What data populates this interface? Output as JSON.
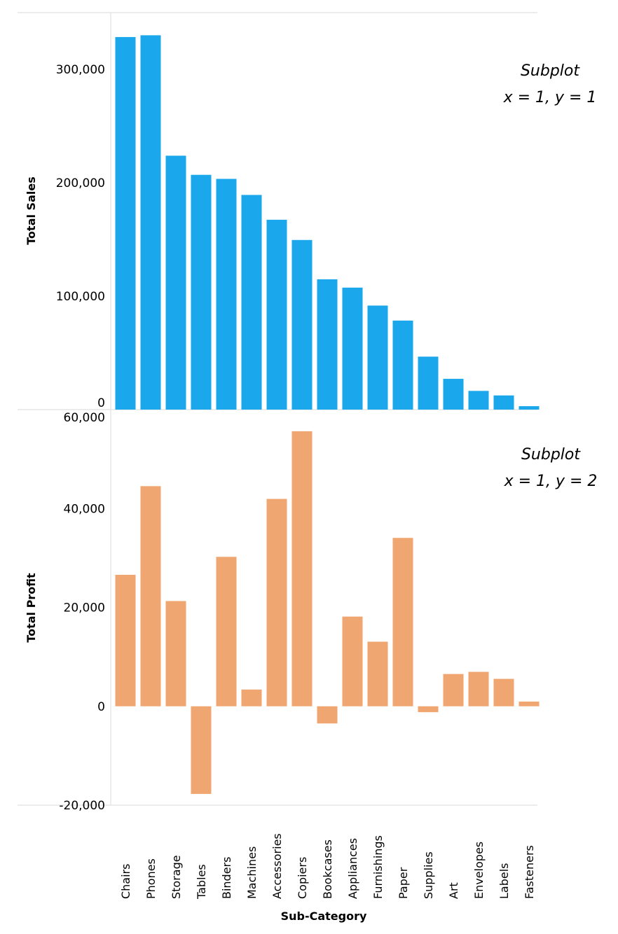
{
  "chart_data": [
    {
      "type": "bar",
      "subplot": "top",
      "categories": [
        "Chairs",
        "Phones",
        "Storage",
        "Tables",
        "Binders",
        "Machines",
        "Accessories",
        "Copiers",
        "Bookcases",
        "Appliances",
        "Furnishings",
        "Paper",
        "Supplies",
        "Art",
        "Envelopes",
        "Labels",
        "Fasteners"
      ],
      "values": [
        328449,
        330007,
        223844,
        206966,
        203413,
        189239,
        167380,
        149528,
        114880,
        107532,
        91705,
        78479,
        46674,
        27119,
        16476,
        12486,
        3024
      ],
      "ylabel": "Total Sales",
      "ylim": [
        0,
        350000
      ],
      "yticks": [
        0,
        100000,
        200000,
        300000
      ],
      "ytick_labels": [
        "0",
        "100,000",
        "200,000",
        "300,000"
      ],
      "color": "#1BA7EC",
      "annotation": [
        "Subplot",
        "x = 1, y = 1"
      ]
    },
    {
      "type": "bar",
      "subplot": "bottom",
      "categories": [
        "Chairs",
        "Phones",
        "Storage",
        "Tables",
        "Binders",
        "Machines",
        "Accessories",
        "Copiers",
        "Bookcases",
        "Appliances",
        "Furnishings",
        "Paper",
        "Supplies",
        "Art",
        "Envelopes",
        "Labels",
        "Fasteners"
      ],
      "values": [
        26590,
        44516,
        21279,
        -17725,
        30222,
        3385,
        41937,
        55618,
        -3473,
        18138,
        13059,
        34054,
        -1189,
        6528,
        6964,
        5546,
        949
      ],
      "ylabel": "Total Profit",
      "ylim": [
        -20000,
        60000
      ],
      "yticks": [
        -20000,
        0,
        20000,
        40000,
        60000
      ],
      "ytick_labels": [
        "-20,000",
        "0",
        "20,000",
        "40,000",
        "60,000"
      ],
      "color": "#F0A670",
      "annotation": [
        "Subplot",
        "x = 1, y = 2"
      ],
      "xlabel": "Sub-Category"
    }
  ]
}
